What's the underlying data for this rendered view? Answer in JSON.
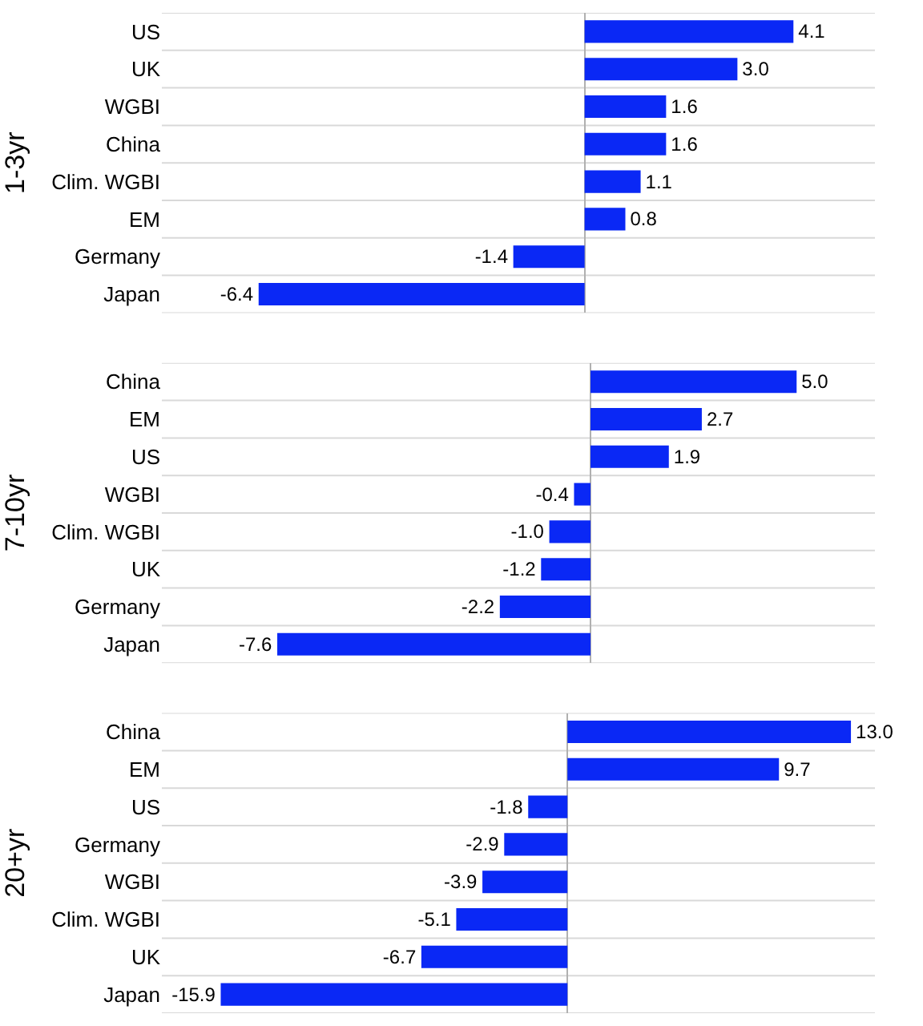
{
  "chart_data": [
    {
      "type": "bar",
      "orientation": "horizontal",
      "ylabel": "1-3yr",
      "categories": [
        "US",
        "UK",
        "WGBI",
        "China",
        "Clim. WGBI",
        "EM",
        "Germany",
        "Japan"
      ],
      "values": [
        4.1,
        3.0,
        1.6,
        1.6,
        1.1,
        0.8,
        -1.4,
        -6.4
      ],
      "value_labels": [
        "4.1",
        "3.0",
        "1.6",
        "1.6",
        "1.1",
        "0.8",
        "-1.4",
        "-6.4"
      ],
      "color": "#0a28f5",
      "xlim": [
        -8.3,
        5.7
      ],
      "tick_labels": "y",
      "grid": "y"
    },
    {
      "type": "bar",
      "orientation": "horizontal",
      "ylabel": "7-10yr",
      "categories": [
        "China",
        "EM",
        "US",
        "WGBI",
        "Clim. WGBI",
        "UK",
        "Germany",
        "Japan"
      ],
      "values": [
        5.0,
        2.7,
        1.9,
        -0.4,
        -1.0,
        -1.2,
        -2.2,
        -7.6
      ],
      "value_labels": [
        "5.0",
        "2.7",
        "1.9",
        "-0.4",
        "-1.0",
        "-1.2",
        "-2.2",
        "-7.6"
      ],
      "color": "#0a28f5",
      "xlim": [
        -10.4,
        6.9
      ],
      "tick_labels": "y",
      "grid": "y"
    },
    {
      "type": "bar",
      "orientation": "horizontal",
      "ylabel": "20+yr",
      "categories": [
        "China",
        "EM",
        "US",
        "Germany",
        "WGBI",
        "Clim. WGBI",
        "UK",
        "Japan"
      ],
      "values": [
        13.0,
        9.7,
        -1.8,
        -2.9,
        -3.9,
        -5.1,
        -6.7,
        -15.9
      ],
      "value_labels": [
        "13.0",
        "9.7",
        "-1.8",
        "-2.9",
        "-3.9",
        "-5.1",
        "-6.7",
        "-15.9"
      ],
      "color": "#0a28f5",
      "xlim": [
        -18.6,
        14.1
      ],
      "tick_labels": "y",
      "grid": "y"
    }
  ]
}
